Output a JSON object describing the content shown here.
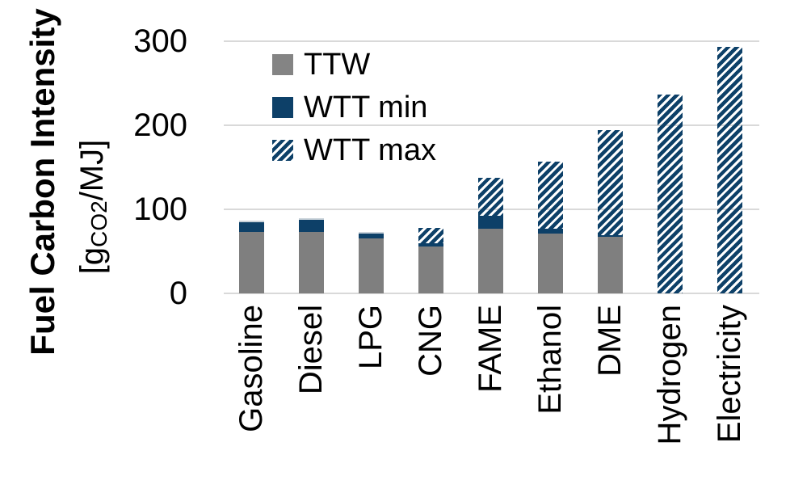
{
  "axis": {
    "y_title": "Fuel Carbon Intensity",
    "y_units_prefix": "[g",
    "y_units_sub": "CO2",
    "y_units_suffix": "/MJ]",
    "y_ticks": [
      0,
      100,
      200,
      300
    ],
    "y_max": 300
  },
  "legend": {
    "items": [
      {
        "label": "TTW",
        "swatch": "solid-gray"
      },
      {
        "label": "WTT min",
        "swatch": "solid-blue"
      },
      {
        "label": "WTT max",
        "swatch": "hatched-blue"
      }
    ]
  },
  "colors": {
    "ttw_gray": "#7F7F7F",
    "legend_gray": "#848484",
    "wtt_blue": "#0D4068",
    "gridline": "#D9D9D9",
    "text": "#000000",
    "background": "#FFFFFF"
  },
  "chart_data": {
    "type": "bar",
    "stacked": true,
    "title": "",
    "ylabel": "Fuel Carbon Intensity [gCO2/MJ]",
    "ylim": [
      0,
      300
    ],
    "grid": "horizontal-gridlines-at-0-100-200-300",
    "legend_position": "inside-top-left",
    "categories": [
      "Gasoline",
      "Diesel",
      "LPG",
      "CNG",
      "FAME",
      "Ethanol",
      "DME",
      "Hydrogen",
      "Electricity"
    ],
    "series": [
      {
        "name": "TTW",
        "style": "solid-gray",
        "values": [
          73,
          73,
          65,
          56,
          77,
          71,
          67,
          0,
          0
        ]
      },
      {
        "name": "WTT min",
        "style": "solid-blue",
        "note": "segment height above TTW",
        "values": [
          14,
          16,
          8,
          4,
          15,
          6,
          2,
          0,
          0
        ]
      },
      {
        "name": "WTT max",
        "style": "hatched-blue",
        "note": "hatched segment height above WTT min",
        "values": [
          0,
          0,
          0,
          18,
          46,
          80,
          125,
          237,
          293
        ]
      }
    ],
    "bar_top_totals": [
      87,
      89,
      73,
      78,
      138,
      157,
      194,
      237,
      293
    ]
  }
}
